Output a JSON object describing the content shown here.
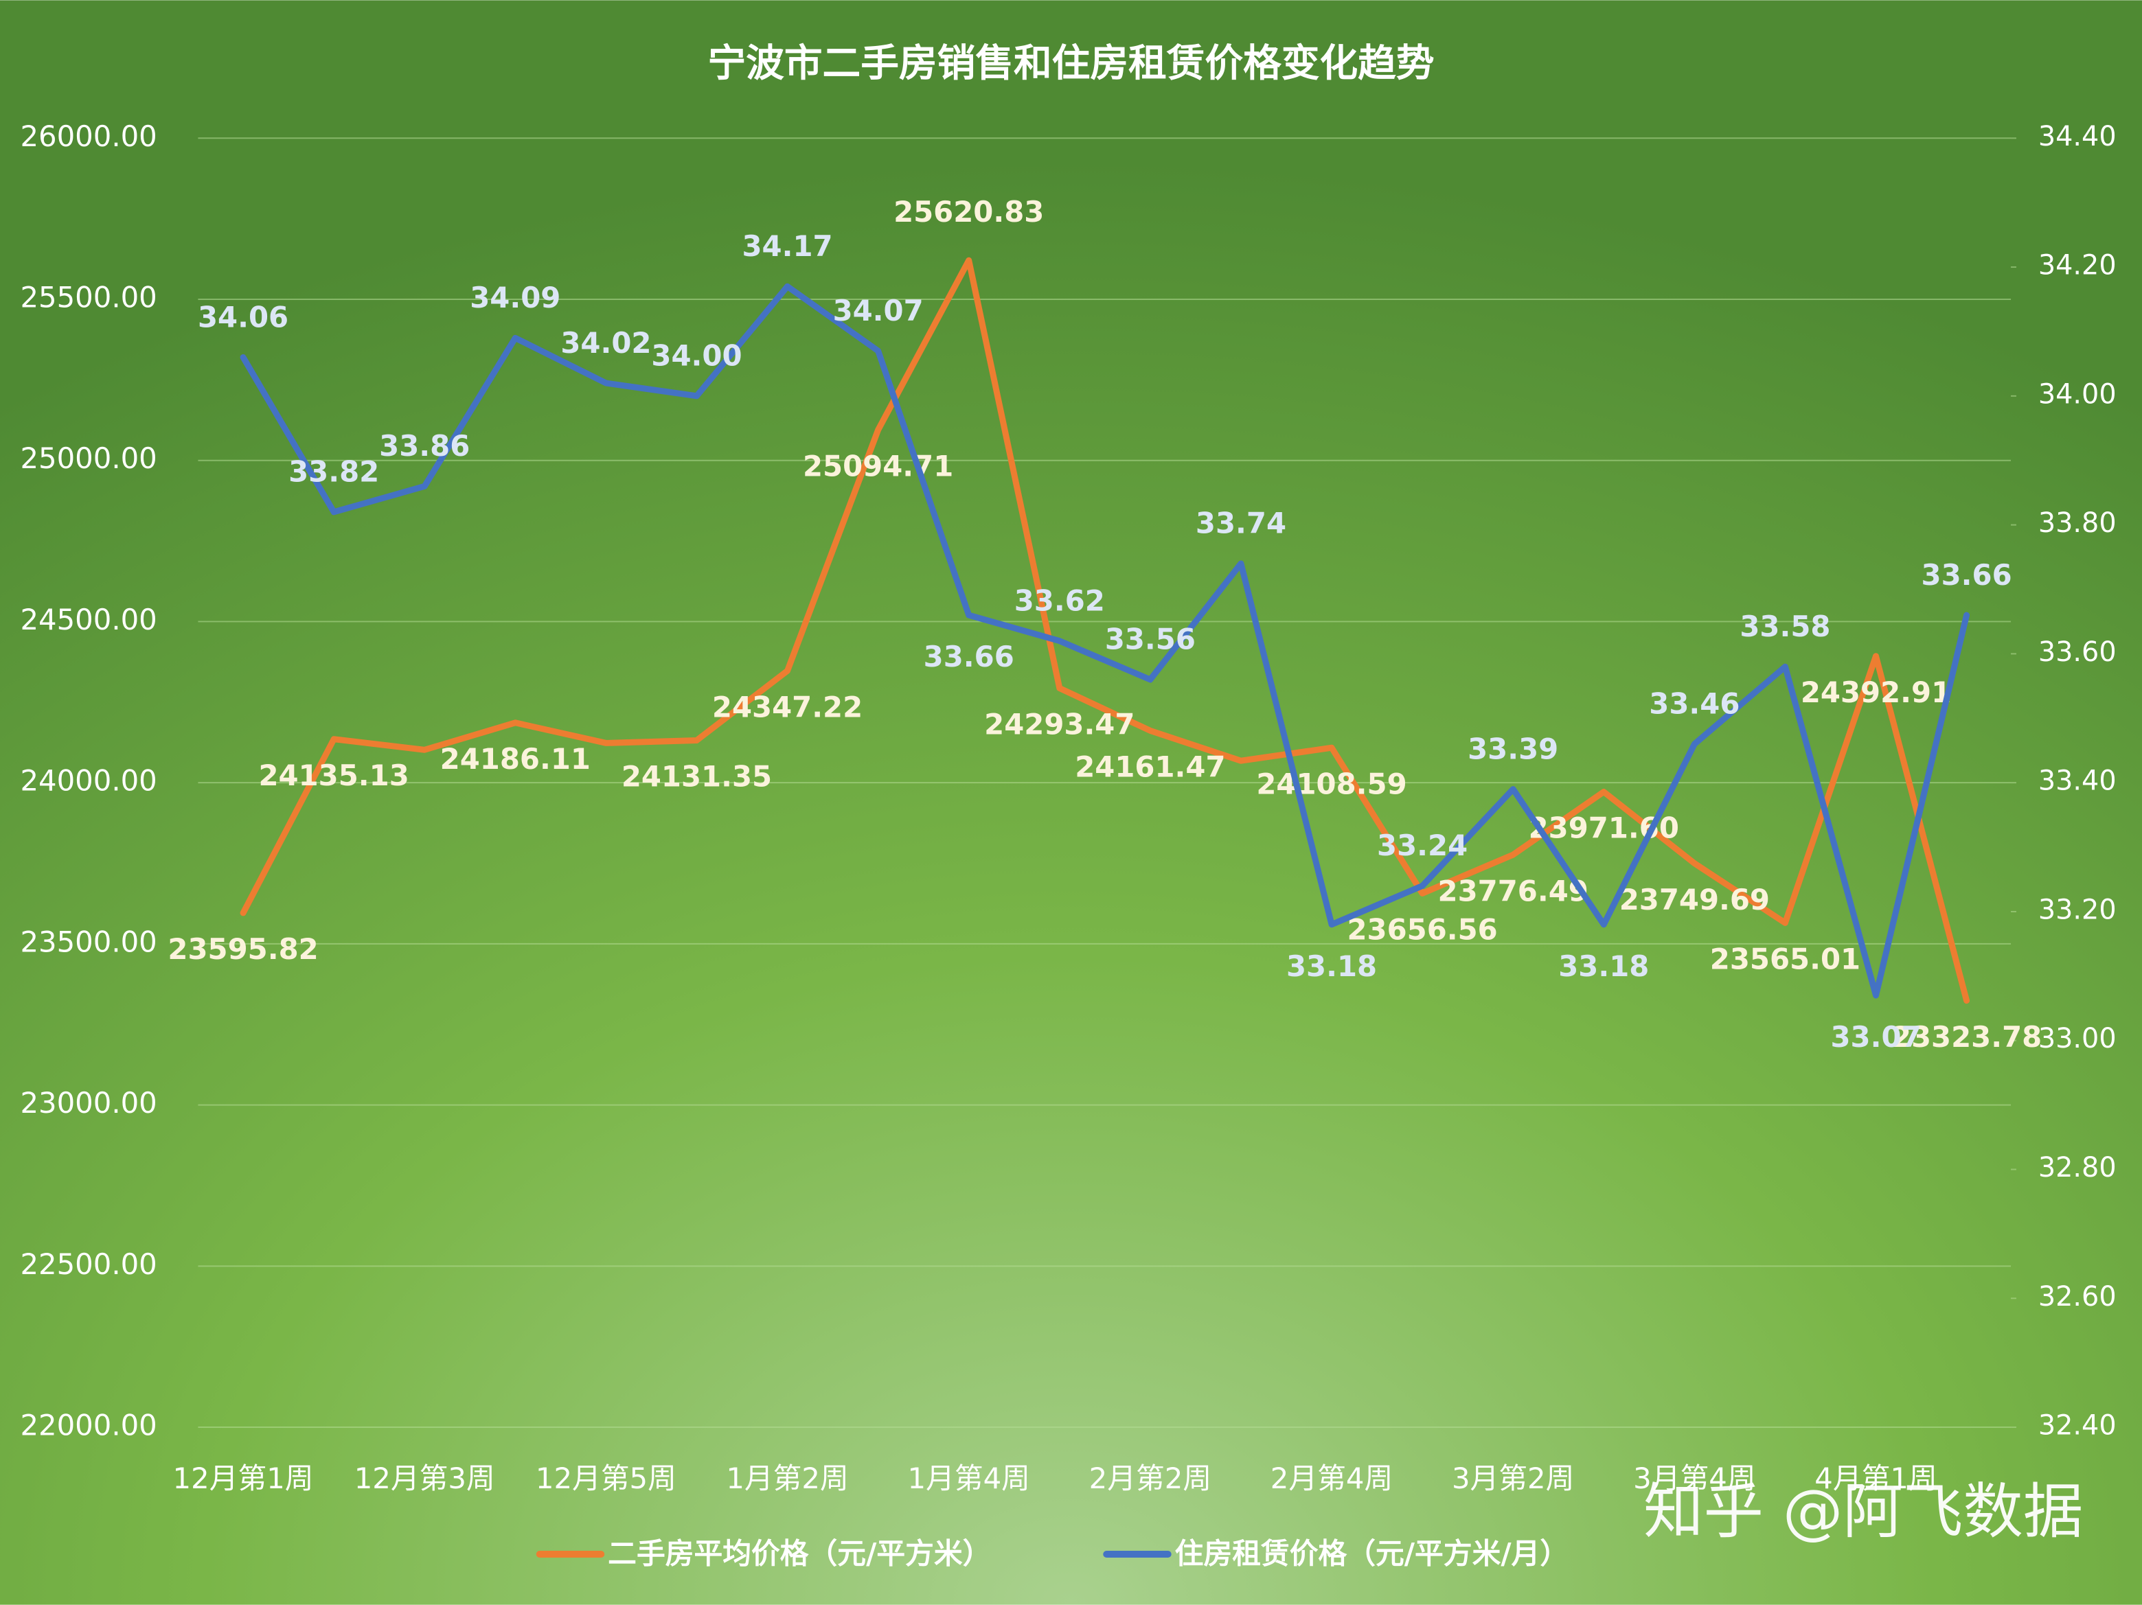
{
  "chart_data": {
    "type": "line",
    "title": "宁波市二手房销售和住房租赁价格变化趋势",
    "watermark": "知乎 @阿飞数据",
    "categories": [
      "12月第1周",
      null,
      "12月第3周",
      null,
      "12月第5周",
      null,
      "1月第2周",
      null,
      "1月第4周",
      null,
      "2月第2周",
      null,
      "2月第4周",
      null,
      "3月第2周",
      null,
      "3月第4周",
      null,
      "4月第1周",
      null
    ],
    "series": [
      {
        "name": "二手房平均价格（元/平方米）",
        "color": "#ed7d31",
        "values": [
          23595.82,
          24135.13,
          24102,
          24186.11,
          24123,
          24131.35,
          24347.22,
          25094.71,
          25620.83,
          24293.47,
          24161.47,
          24068,
          24108.59,
          23656.56,
          23776.49,
          23971.6,
          23749.69,
          23565.01,
          24392.91,
          23323.78
        ],
        "value_labels": [
          "23595.82",
          "24135.13",
          null,
          "24186.11",
          null,
          "24131.35",
          "24347.22",
          "25094.71",
          "25620.83",
          "24293.47",
          "24161.47",
          null,
          "24108.59",
          "23656.56",
          "23776.49",
          "23971.60",
          "23749.69",
          "23565.01",
          "24392.91",
          "23323.78"
        ]
      },
      {
        "name": "住房租赁价格（元/平方米/月）",
        "color": "#4472c4",
        "axis": "y2",
        "values": [
          34.06,
          33.82,
          33.86,
          34.09,
          34.02,
          34.0,
          34.17,
          34.07,
          33.66,
          33.62,
          33.56,
          33.74,
          33.18,
          33.24,
          33.39,
          33.18,
          33.46,
          33.58,
          33.07,
          33.66
        ],
        "value_labels": [
          "34.06",
          "33.82",
          "33.86",
          "34.09",
          "34.02",
          "34.00",
          "34.17",
          "34.07",
          "33.66",
          "33.62",
          "33.56",
          "33.74",
          "33.18",
          "33.24",
          "33.39",
          "33.18",
          "33.46",
          "33.58",
          "33.07",
          "33.66"
        ]
      }
    ],
    "ylim": [
      22000,
      26000
    ],
    "yticks": [
      {
        "value": 22000,
        "label": "22000.00"
      },
      {
        "value": 22500,
        "label": "22500.00"
      },
      {
        "value": 23000,
        "label": "23000.00"
      },
      {
        "value": 23500,
        "label": "23500.00"
      },
      {
        "value": 24000,
        "label": "24000.00"
      },
      {
        "value": 24500,
        "label": "24500.00"
      },
      {
        "value": 25000,
        "label": "25000.00"
      },
      {
        "value": 25500,
        "label": "25500.00"
      },
      {
        "value": 26000,
        "label": "26000.00"
      }
    ],
    "y2lim": [
      32.4,
      34.4
    ],
    "y2ticks": [
      {
        "value": 32.4,
        "label": "32.40"
      },
      {
        "value": 32.6,
        "label": "32.60"
      },
      {
        "value": 32.8,
        "label": "32.80"
      },
      {
        "value": 33.0,
        "label": "33.00"
      },
      {
        "value": 33.2,
        "label": "33.20"
      },
      {
        "value": 33.4,
        "label": "33.40"
      },
      {
        "value": 33.6,
        "label": "33.60"
      },
      {
        "value": 33.8,
        "label": "33.80"
      },
      {
        "value": 34.0,
        "label": "34.00"
      },
      {
        "value": 34.2,
        "label": "34.20"
      },
      {
        "value": 34.4,
        "label": "34.40"
      }
    ],
    "grid": true,
    "legend": "bottom"
  }
}
